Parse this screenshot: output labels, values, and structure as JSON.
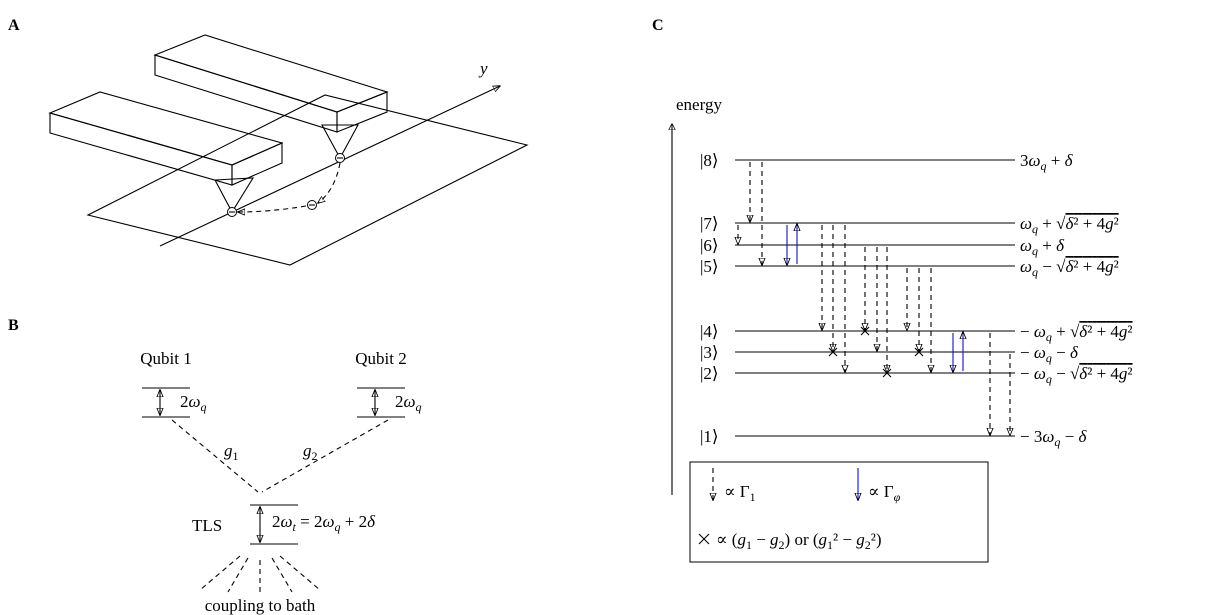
{
  "panels": {
    "a": {
      "label": "A",
      "axis_label": "y"
    },
    "b": {
      "label": "B",
      "qubit1": "Qubit 1",
      "qubit2": "Qubit 2",
      "qubit1_splitting": "2ωq",
      "qubit2_splitting": "2ωq",
      "coupling1": "g1",
      "coupling2": "g2",
      "tls": "TLS",
      "tls_splitting": "2ωt = 2ωq + 2δ",
      "bath": "coupling to bath"
    },
    "c": {
      "label": "C",
      "axis_label": "energy",
      "levels": [
        {
          "state": "|8⟩",
          "energy": "3ωq + δ"
        },
        {
          "state": "|7⟩",
          "energy": "ωq + √δ² + 4g²"
        },
        {
          "state": "|6⟩",
          "energy": "ωq + δ"
        },
        {
          "state": "|5⟩",
          "energy": "ωq − √δ² + 4g²"
        },
        {
          "state": "|4⟩",
          "energy": "− ωq + √δ² + 4g²"
        },
        {
          "state": "|3⟩",
          "energy": "− ωq − δ"
        },
        {
          "state": "|2⟩",
          "energy": "− ωq − √δ² + 4g²"
        },
        {
          "state": "|1⟩",
          "energy": "− 3ωq − δ"
        }
      ],
      "legend": {
        "relaxation": "∝ Γ1",
        "dephasing": "∝ Γφ",
        "crossing": "∝ (g1 − g2) or (g1² − g2²)"
      }
    }
  }
}
